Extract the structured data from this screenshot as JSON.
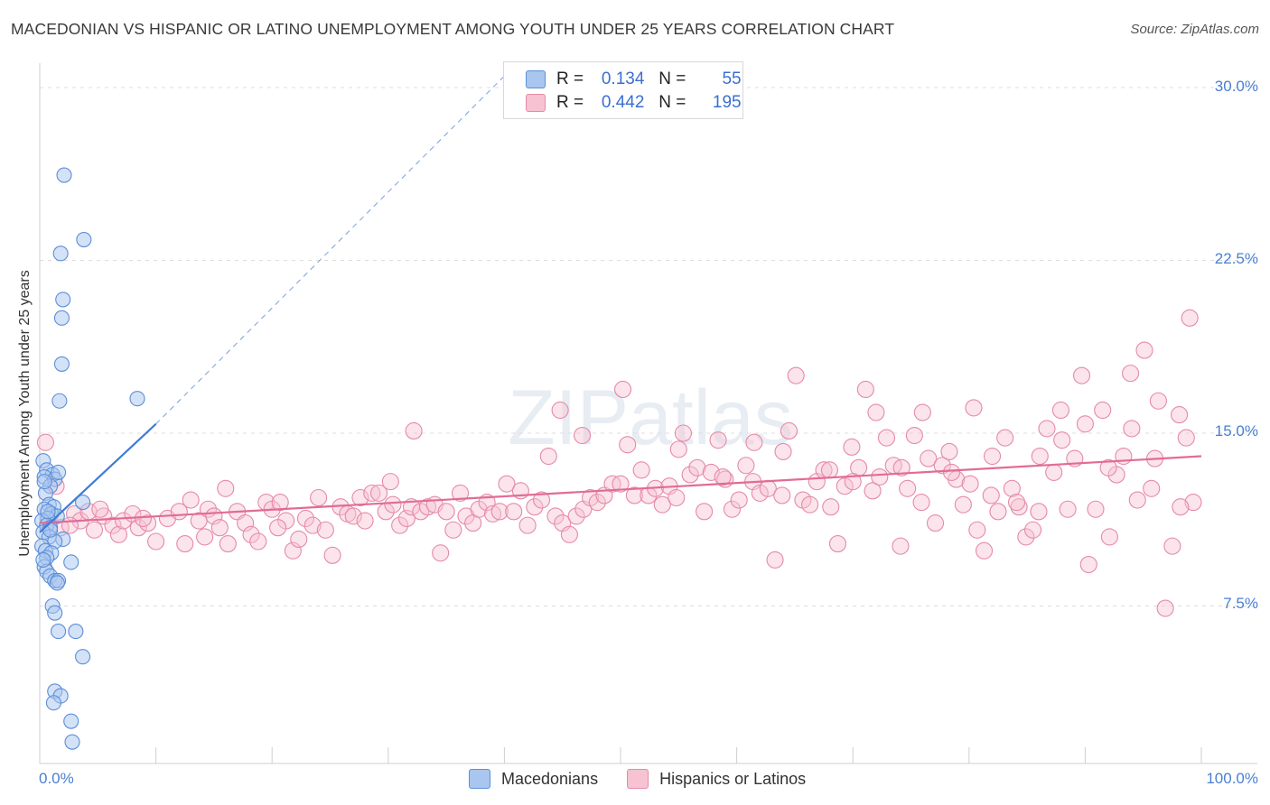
{
  "title": "MACEDONIAN VS HISPANIC OR LATINO UNEMPLOYMENT AMONG YOUTH UNDER 25 YEARS CORRELATION CHART",
  "source": "Source: ZipAtlas.com",
  "watermark": "ZIPatlas",
  "legend": {
    "mac": {
      "r_label": "R =",
      "r_value": "0.134",
      "n_label": "N =",
      "n_value": "55"
    },
    "his": {
      "r_label": "R =",
      "r_value": "0.442",
      "n_label": "N =",
      "n_value": "195"
    }
  },
  "bottom_legend": {
    "mac": "Macedonians",
    "his": "Hispanics or Latinos"
  },
  "chart_data": {
    "type": "scatter",
    "title": "MACEDONIAN VS HISPANIC OR LATINO UNEMPLOYMENT AMONG YOUTH UNDER 25 YEARS CORRELATION CHART",
    "xlabel": "",
    "ylabel": "Unemployment Among Youth under 25 years",
    "xlim": [
      0,
      100
    ],
    "ylim": [
      0,
      31
    ],
    "x_tick_labels": {
      "min": "0.0%",
      "max": "100.0%"
    },
    "y_ticks": [
      7.5,
      15.0,
      22.5,
      30.0
    ],
    "y_tick_labels": [
      "7.5%",
      "15.0%",
      "22.5%",
      "30.0%"
    ],
    "colors": {
      "mac_fill": "#a9c6f0",
      "mac_stroke": "#5b8fd8",
      "mac_line": "#3f7bd6",
      "his_fill": "#f7c3d3",
      "his_stroke": "#e58aa8",
      "his_line": "#e26b96"
    },
    "series": [
      {
        "name": "Macedonians",
        "r": 0.134,
        "n": 55,
        "trend": {
          "x": [
            0,
            10
          ],
          "y": [
            10.7,
            15.4
          ],
          "dashed_to": {
            "x": 40,
            "y": 30.5
          }
        },
        "points": [
          [
            2.1,
            26.2
          ],
          [
            3.8,
            23.4
          ],
          [
            1.8,
            22.8
          ],
          [
            2.0,
            20.8
          ],
          [
            1.9,
            20.0
          ],
          [
            1.9,
            18.0
          ],
          [
            1.7,
            16.4
          ],
          [
            8.4,
            16.5
          ],
          [
            0.3,
            13.8
          ],
          [
            0.6,
            13.4
          ],
          [
            1.1,
            13.2
          ],
          [
            0.4,
            13.1
          ],
          [
            1.3,
            13.0
          ],
          [
            0.9,
            12.7
          ],
          [
            0.5,
            12.4
          ],
          [
            3.7,
            12.0
          ],
          [
            0.8,
            11.9
          ],
          [
            1.2,
            11.8
          ],
          [
            0.4,
            11.7
          ],
          [
            1.0,
            11.5
          ],
          [
            1.5,
            11.4
          ],
          [
            0.7,
            11.3
          ],
          [
            0.2,
            11.2
          ],
          [
            0.6,
            11.0
          ],
          [
            0.9,
            10.9
          ],
          [
            0.3,
            10.7
          ],
          [
            0.8,
            10.5
          ],
          [
            2.0,
            10.4
          ],
          [
            1.3,
            10.3
          ],
          [
            0.2,
            10.1
          ],
          [
            0.5,
            9.9
          ],
          [
            1.0,
            9.8
          ],
          [
            0.6,
            9.6
          ],
          [
            2.7,
            9.4
          ],
          [
            0.4,
            9.2
          ],
          [
            0.6,
            9.0
          ],
          [
            0.9,
            8.8
          ],
          [
            1.3,
            8.6
          ],
          [
            1.6,
            8.6
          ],
          [
            1.5,
            8.5
          ],
          [
            1.1,
            7.5
          ],
          [
            1.3,
            7.2
          ],
          [
            3.1,
            6.4
          ],
          [
            1.6,
            6.4
          ],
          [
            3.7,
            5.3
          ],
          [
            1.3,
            3.8
          ],
          [
            1.8,
            3.6
          ],
          [
            1.2,
            3.3
          ],
          [
            2.7,
            2.5
          ],
          [
            2.8,
            1.6
          ],
          [
            0.4,
            12.9
          ],
          [
            1.6,
            13.3
          ],
          [
            0.7,
            11.6
          ],
          [
            0.9,
            10.8
          ],
          [
            0.3,
            9.5
          ]
        ]
      },
      {
        "name": "Hispanics or Latinos",
        "r": 0.442,
        "n": 195,
        "trend": {
          "x": [
            0,
            100
          ],
          "y": [
            11.1,
            14.0
          ]
        },
        "points": [
          [
            0.5,
            14.6
          ],
          [
            1.4,
            12.7
          ],
          [
            3.0,
            11.5
          ],
          [
            3.5,
            11.2
          ],
          [
            4.2,
            11.6
          ],
          [
            4.7,
            10.8
          ],
          [
            5.5,
            11.4
          ],
          [
            6.3,
            11.0
          ],
          [
            6.8,
            10.6
          ],
          [
            7.2,
            11.2
          ],
          [
            8.0,
            11.5
          ],
          [
            8.5,
            10.9
          ],
          [
            9.3,
            11.1
          ],
          [
            10.0,
            10.3
          ],
          [
            11.0,
            11.3
          ],
          [
            12.0,
            11.6
          ],
          [
            12.5,
            10.2
          ],
          [
            13.0,
            12.1
          ],
          [
            13.7,
            11.2
          ],
          [
            14.5,
            11.7
          ],
          [
            15.0,
            11.4
          ],
          [
            15.5,
            10.9
          ],
          [
            16.2,
            10.2
          ],
          [
            16.0,
            12.6
          ],
          [
            17.0,
            11.6
          ],
          [
            17.7,
            11.1
          ],
          [
            18.2,
            10.6
          ],
          [
            18.8,
            10.3
          ],
          [
            19.5,
            12.0
          ],
          [
            20.0,
            11.7
          ],
          [
            20.7,
            12.0
          ],
          [
            21.2,
            11.2
          ],
          [
            21.8,
            9.9
          ],
          [
            22.3,
            10.4
          ],
          [
            22.9,
            11.3
          ],
          [
            23.5,
            11.0
          ],
          [
            24.0,
            12.2
          ],
          [
            24.6,
            10.8
          ],
          [
            25.2,
            9.7
          ],
          [
            25.9,
            11.8
          ],
          [
            26.5,
            11.5
          ],
          [
            27.0,
            11.4
          ],
          [
            27.6,
            12.2
          ],
          [
            28.0,
            11.2
          ],
          [
            28.6,
            12.4
          ],
          [
            29.2,
            12.4
          ],
          [
            29.8,
            11.6
          ],
          [
            30.4,
            11.9
          ],
          [
            31.0,
            11.0
          ],
          [
            31.6,
            11.3
          ],
          [
            32.2,
            15.1
          ],
          [
            32.0,
            11.8
          ],
          [
            32.8,
            11.6
          ],
          [
            33.4,
            11.8
          ],
          [
            34.0,
            11.9
          ],
          [
            34.5,
            9.8
          ],
          [
            35.0,
            11.6
          ],
          [
            35.6,
            10.8
          ],
          [
            36.2,
            12.4
          ],
          [
            36.7,
            11.4
          ],
          [
            37.3,
            11.1
          ],
          [
            37.8,
            11.7
          ],
          [
            38.5,
            12.0
          ],
          [
            39.0,
            11.5
          ],
          [
            39.6,
            11.6
          ],
          [
            40.2,
            12.8
          ],
          [
            40.8,
            11.6
          ],
          [
            41.4,
            12.5
          ],
          [
            42.0,
            11.0
          ],
          [
            42.6,
            11.8
          ],
          [
            43.2,
            12.1
          ],
          [
            43.8,
            14.0
          ],
          [
            44.4,
            11.4
          ],
          [
            45.0,
            11.1
          ],
          [
            45.6,
            10.6
          ],
          [
            46.2,
            11.4
          ],
          [
            46.8,
            11.7
          ],
          [
            47.4,
            12.2
          ],
          [
            48.0,
            12.0
          ],
          [
            48.6,
            12.3
          ],
          [
            49.3,
            12.8
          ],
          [
            50.0,
            12.8
          ],
          [
            50.6,
            14.5
          ],
          [
            51.2,
            12.3
          ],
          [
            51.8,
            13.4
          ],
          [
            52.4,
            12.3
          ],
          [
            53.0,
            12.6
          ],
          [
            53.6,
            11.9
          ],
          [
            54.2,
            12.7
          ],
          [
            54.8,
            12.2
          ],
          [
            55.4,
            15.0
          ],
          [
            56.0,
            13.2
          ],
          [
            56.6,
            13.5
          ],
          [
            57.2,
            11.6
          ],
          [
            57.8,
            13.3
          ],
          [
            58.4,
            14.7
          ],
          [
            59.0,
            13.0
          ],
          [
            59.6,
            11.7
          ],
          [
            60.2,
            12.1
          ],
          [
            60.8,
            13.6
          ],
          [
            61.4,
            12.9
          ],
          [
            62.0,
            12.4
          ],
          [
            62.7,
            12.6
          ],
          [
            63.3,
            9.5
          ],
          [
            63.9,
            12.3
          ],
          [
            64.5,
            15.1
          ],
          [
            65.1,
            17.5
          ],
          [
            65.7,
            12.1
          ],
          [
            66.3,
            11.9
          ],
          [
            66.9,
            12.9
          ],
          [
            67.5,
            13.4
          ],
          [
            68.1,
            11.8
          ],
          [
            68.7,
            10.2
          ],
          [
            69.3,
            12.7
          ],
          [
            69.9,
            14.4
          ],
          [
            70.5,
            13.5
          ],
          [
            71.1,
            16.9
          ],
          [
            71.7,
            12.5
          ],
          [
            72.3,
            13.1
          ],
          [
            72.9,
            14.8
          ],
          [
            73.5,
            13.6
          ],
          [
            74.1,
            10.1
          ],
          [
            74.7,
            12.6
          ],
          [
            75.3,
            14.9
          ],
          [
            75.9,
            12.0
          ],
          [
            76.5,
            13.9
          ],
          [
            77.1,
            11.1
          ],
          [
            77.7,
            13.6
          ],
          [
            78.3,
            14.2
          ],
          [
            78.9,
            13.0
          ],
          [
            79.5,
            11.9
          ],
          [
            80.1,
            12.8
          ],
          [
            80.7,
            10.8
          ],
          [
            81.3,
            9.9
          ],
          [
            81.9,
            12.3
          ],
          [
            82.5,
            11.6
          ],
          [
            83.1,
            14.8
          ],
          [
            83.7,
            12.6
          ],
          [
            84.3,
            11.8
          ],
          [
            84.9,
            10.5
          ],
          [
            85.5,
            10.8
          ],
          [
            86.1,
            14.0
          ],
          [
            86.7,
            15.2
          ],
          [
            87.3,
            13.3
          ],
          [
            87.9,
            16.0
          ],
          [
            88.5,
            11.7
          ],
          [
            89.1,
            13.9
          ],
          [
            89.7,
            17.5
          ],
          [
            90.3,
            9.3
          ],
          [
            90.9,
            11.7
          ],
          [
            91.5,
            16.0
          ],
          [
            92.1,
            10.5
          ],
          [
            92.7,
            13.2
          ],
          [
            93.3,
            14.0
          ],
          [
            93.9,
            17.6
          ],
          [
            94.5,
            12.1
          ],
          [
            95.1,
            18.6
          ],
          [
            95.7,
            12.6
          ],
          [
            96.3,
            16.4
          ],
          [
            96.9,
            7.4
          ],
          [
            97.5,
            10.1
          ],
          [
            98.1,
            15.8
          ],
          [
            98.7,
            14.8
          ],
          [
            99.3,
            12.0
          ],
          [
            99.0,
            20.0
          ],
          [
            98.2,
            11.8
          ],
          [
            1.8,
            10.9
          ],
          [
            2.6,
            11.0
          ],
          [
            44.8,
            16.0
          ],
          [
            46.7,
            14.9
          ],
          [
            50.2,
            16.9
          ],
          [
            55.0,
            14.3
          ],
          [
            58.8,
            13.1
          ],
          [
            61.5,
            14.6
          ],
          [
            64.0,
            14.2
          ],
          [
            68.0,
            13.4
          ],
          [
            70.0,
            12.9
          ],
          [
            72.0,
            15.9
          ],
          [
            74.2,
            13.5
          ],
          [
            76.0,
            15.9
          ],
          [
            78.5,
            13.3
          ],
          [
            80.4,
            16.1
          ],
          [
            82.0,
            14.0
          ],
          [
            84.1,
            12.0
          ],
          [
            86.0,
            11.6
          ],
          [
            88.0,
            14.7
          ],
          [
            90.0,
            15.4
          ],
          [
            92.0,
            13.5
          ],
          [
            94.0,
            15.2
          ],
          [
            96.0,
            13.9
          ],
          [
            30.2,
            12.9
          ],
          [
            20.5,
            10.9
          ],
          [
            14.2,
            10.5
          ],
          [
            8.9,
            11.3
          ],
          [
            5.2,
            11.7
          ]
        ]
      }
    ]
  }
}
